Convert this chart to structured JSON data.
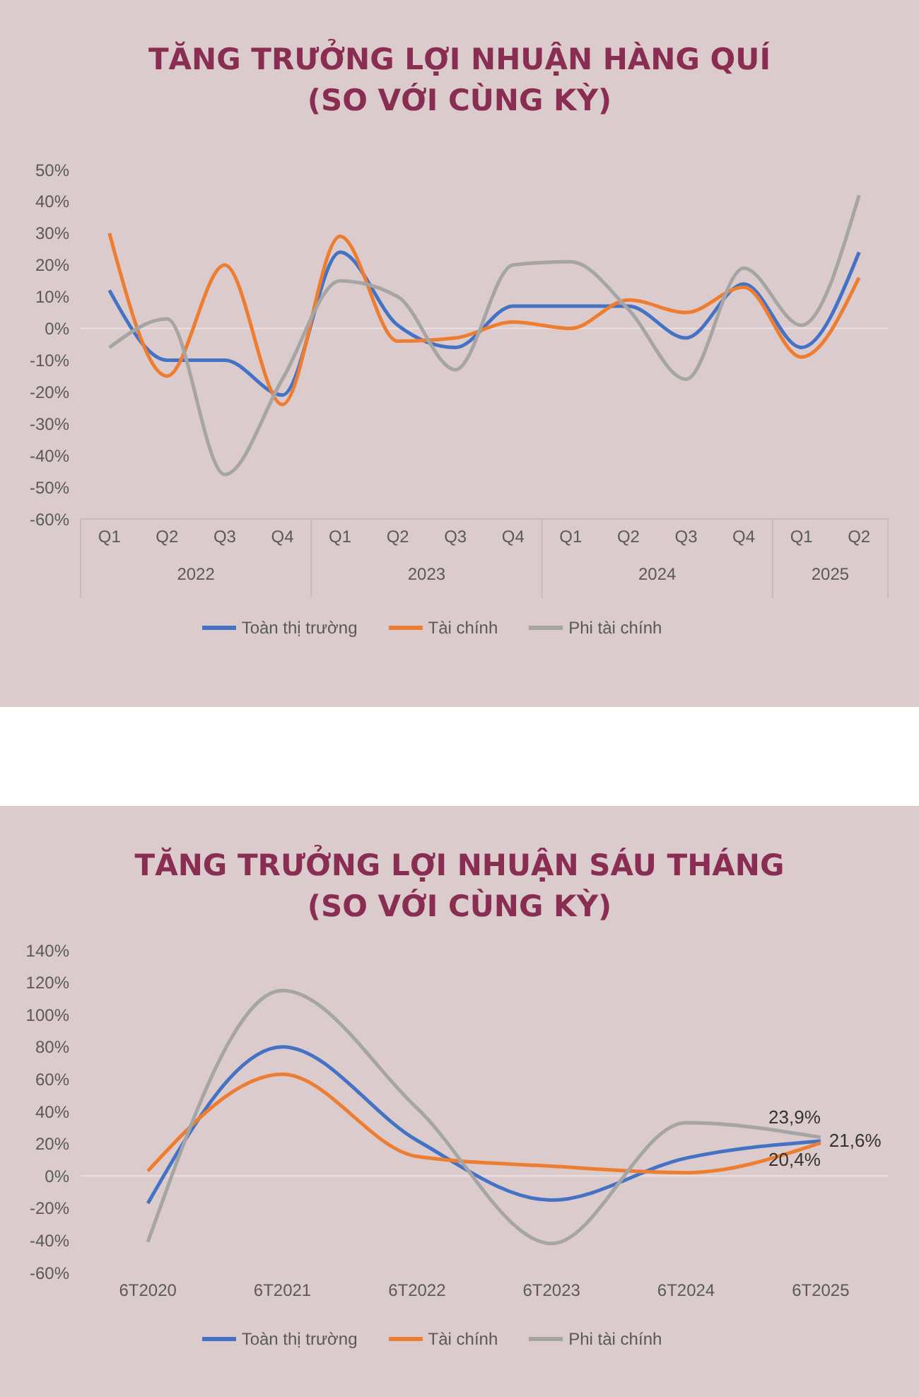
{
  "chart_data": [
    {
      "type": "line",
      "title": "TĂNG TRƯỞNG LỢI NHUẬN HÀNG QUÍ",
      "subtitle": "(SO VỚI CÙNG KỲ)",
      "categories": [
        "Q1",
        "Q2",
        "Q3",
        "Q4",
        "Q1",
        "Q2",
        "Q3",
        "Q4",
        "Q1",
        "Q2",
        "Q3",
        "Q4",
        "Q1",
        "Q2"
      ],
      "annotations": [
        "2022",
        "2023",
        "2024",
        "2025"
      ],
      "series": [
        {
          "name": "Toàn thị trường",
          "color": "#4472c4",
          "values": [
            12,
            -10,
            -10,
            -21,
            24,
            1,
            -6,
            7,
            7,
            7,
            -3,
            14,
            -6,
            24
          ]
        },
        {
          "name": "Tài chính",
          "color": "#ed7d31",
          "values": [
            30,
            -15,
            20,
            -24,
            29,
            -4,
            -3,
            2,
            0,
            9,
            5,
            13,
            -9,
            16
          ]
        },
        {
          "name": "Phi tài chính",
          "color": "#a5a5a5",
          "values": [
            -6,
            3,
            -46,
            -16,
            15,
            10,
            -13,
            20,
            21,
            6,
            -16,
            19,
            1,
            42
          ]
        }
      ],
      "ylim": [
        -60,
        50
      ],
      "yticks": [
        {
          "value": -60,
          "label": "-60%"
        },
        {
          "value": -50,
          "label": "-50%"
        },
        {
          "value": -40,
          "label": "-40%"
        },
        {
          "value": -30,
          "label": "-30%"
        },
        {
          "value": -20,
          "label": "-20%"
        },
        {
          "value": -10,
          "label": "-10%"
        },
        {
          "value": 0,
          "label": "0%"
        },
        {
          "value": 10,
          "label": "10%"
        },
        {
          "value": 20,
          "label": "20%"
        },
        {
          "value": 30,
          "label": "30%"
        },
        {
          "value": 40,
          "label": "40%"
        },
        {
          "value": 50,
          "label": "50%"
        }
      ],
      "ref_lines": [
        {
          "axis": "y",
          "value": 0,
          "color": "#ebe0e1"
        }
      ],
      "legend": "bottom",
      "marker": "none",
      "line_style": "solid",
      "grid": false
    },
    {
      "type": "line",
      "title": "TĂNG TRƯỞNG LỢI NHUẬN SÁU THÁNG",
      "subtitle": "(SO VỚI CÙNG KỲ)",
      "categories": [
        "6T2020",
        "6T2021",
        "6T2022",
        "6T2023",
        "6T2024",
        "6T2025"
      ],
      "series": [
        {
          "name": "Toàn thị trường",
          "color": "#4472c4",
          "values": [
            -17,
            80,
            22,
            -15,
            11,
            21.6
          ],
          "value_labels": [
            null,
            null,
            null,
            null,
            null,
            "21,6%"
          ]
        },
        {
          "name": "Tài chính",
          "color": "#ed7d31",
          "values": [
            3,
            63,
            12,
            6,
            2,
            20.4
          ],
          "value_labels": [
            null,
            null,
            null,
            null,
            null,
            "20,4%"
          ]
        },
        {
          "name": "Phi tài chính",
          "color": "#a5a5a5",
          "values": [
            -41,
            115,
            42,
            -42,
            33,
            23.9
          ],
          "value_labels": [
            null,
            null,
            null,
            null,
            null,
            "23,9%"
          ]
        }
      ],
      "ylim": [
        -60,
        140
      ],
      "yticks": [
        {
          "value": -60,
          "label": "-60%"
        },
        {
          "value": -40,
          "label": "-40%"
        },
        {
          "value": -20,
          "label": "-20%"
        },
        {
          "value": 0,
          "label": "0%"
        },
        {
          "value": 20,
          "label": "20%"
        },
        {
          "value": 40,
          "label": "40%"
        },
        {
          "value": 60,
          "label": "60%"
        },
        {
          "value": 80,
          "label": "80%"
        },
        {
          "value": 100,
          "label": "100%"
        },
        {
          "value": 120,
          "label": "120%"
        },
        {
          "value": 140,
          "label": "140%"
        }
      ],
      "ref_lines": [
        {
          "axis": "y",
          "value": 0,
          "color": "#ebe0e1"
        }
      ],
      "legend": "bottom",
      "marker": "none",
      "line_style": "solid",
      "grid": false
    }
  ]
}
